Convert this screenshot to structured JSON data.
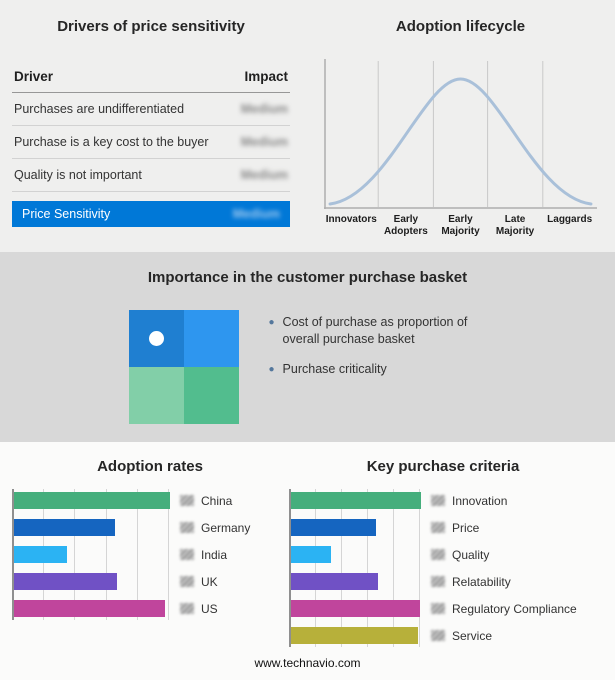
{
  "drivers": {
    "title": "Drivers of price sensitivity",
    "columns": {
      "driver": "Driver",
      "impact": "Impact"
    },
    "rows": [
      {
        "label": "Purchases are undifferentiated",
        "impact": "Medium"
      },
      {
        "label": "Purchase is a key cost to the buyer",
        "impact": "Medium"
      },
      {
        "label": "Quality is not important",
        "impact": "Medium"
      }
    ],
    "highlight": {
      "label": "Price Sensitivity",
      "impact": "Medium",
      "color": "#0078d7"
    }
  },
  "basket": {
    "title": "Importance in the customer purchase basket",
    "legend": [
      {
        "label": "Cost of purchase as proportion of overall purchase basket"
      },
      {
        "label": "Purchase criticality"
      }
    ],
    "bullet_color": "#54779c",
    "quadrant_colors": {
      "top_left": "#1f7fd1",
      "top_right": "#2e96ef",
      "bottom_left": "#82cfa8",
      "bottom_right": "#52bd8e"
    },
    "marker": "white-dot-top-left"
  },
  "footer": {
    "url": "www.technavio.com"
  },
  "chart_data": [
    {
      "id": "adoption-lifecycle",
      "type": "line",
      "title": "Adoption lifecycle",
      "shape": "bell-curve",
      "x": [
        "Innovators",
        "Early Adopters",
        "Early Majority",
        "Late Majority",
        "Laggards"
      ],
      "curve_color": "#a9c0d9",
      "grid": "stage-dividers",
      "yticks": "none"
    },
    {
      "id": "adoption-rates",
      "type": "bar",
      "title": "Adoption rates",
      "orientation": "horizontal",
      "categories": [
        "China",
        "Germany",
        "India",
        "UK",
        "US"
      ],
      "values": [
        100,
        65,
        34,
        66,
        97
      ],
      "value_unit": "relative-length-percent",
      "colors": [
        "#45ae7c",
        "#1565c0",
        "#2bb3f3",
        "#7051c5",
        "#c0459c"
      ],
      "xlabel": "",
      "ylabel": "",
      "axis_ticks": "none"
    },
    {
      "id": "key-purchase-criteria",
      "type": "bar",
      "title": "Key purchase criteria",
      "orientation": "horizontal",
      "categories": [
        "Innovation",
        "Price",
        "Quality",
        "Relatability",
        "Regulatory Compliance",
        "Service"
      ],
      "values": [
        100,
        65,
        31,
        67,
        99,
        98
      ],
      "value_unit": "relative-length-percent",
      "colors": [
        "#45ae7c",
        "#1565c0",
        "#2bb3f3",
        "#7051c5",
        "#c0459c",
        "#b7b03a"
      ],
      "xlabel": "",
      "ylabel": "",
      "axis_ticks": "none"
    }
  ]
}
